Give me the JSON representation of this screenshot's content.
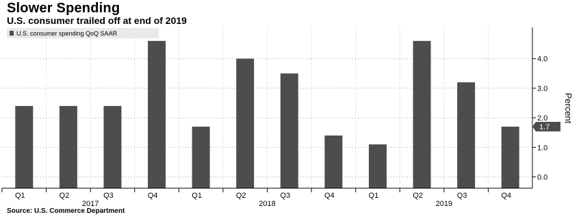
{
  "header": {
    "title": "Slower Spending",
    "subtitle": "U.S. consumer trailed off at end of 2019"
  },
  "footer": {
    "source": "Source: U.S. Commerce Department"
  },
  "chart_data": {
    "type": "bar",
    "categories": [
      "Q1",
      "Q2",
      "Q3",
      "Q4",
      "Q1",
      "Q2",
      "Q3",
      "Q4",
      "Q1",
      "Q2",
      "Q3",
      "Q4"
    ],
    "year_groups": [
      {
        "label": "2017",
        "span": [
          0,
          3
        ]
      },
      {
        "label": "2018",
        "span": [
          4,
          7
        ]
      },
      {
        "label": "2019",
        "span": [
          8,
          11
        ]
      }
    ],
    "series": [
      {
        "name": "U.S. consumer spending QoQ SAAR",
        "color": "#4d4d4d",
        "values": [
          2.4,
          2.4,
          2.4,
          4.6,
          1.7,
          4.0,
          3.5,
          1.4,
          1.1,
          4.6,
          3.2,
          1.7
        ]
      }
    ],
    "ylabel": "Percent",
    "ylim": [
      -0.3,
      5.0
    ],
    "yticks": [
      0.0,
      1.0,
      2.0,
      3.0,
      4.0
    ],
    "ytick_labels": [
      "0.0",
      "1.0",
      "2.0",
      "3.0",
      "4.0"
    ],
    "last_value_label": "1.7",
    "y_axis_position": "right",
    "grid": "horizontal dotted",
    "legend_position": "top-left"
  }
}
